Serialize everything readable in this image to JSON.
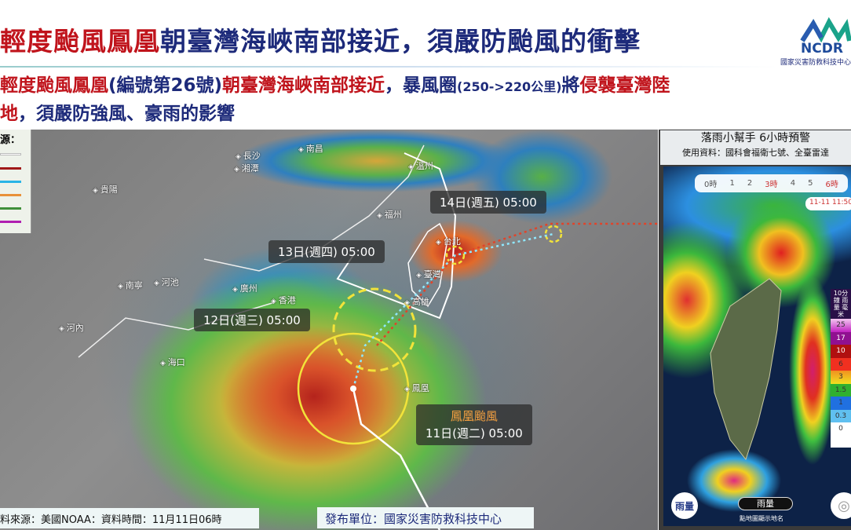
{
  "header": {
    "title_red": "輕度颱風鳳凰",
    "title_blue": "朝臺灣海峽南部接近，須嚴防颱風的衝擊",
    "sub_1": "輕度颱風鳳凰",
    "sub_2": "(編號第26號)",
    "sub_3": "朝臺灣海峽南部接近",
    "sub_4": "，暴風圈",
    "sub_5": "(250->220公里)",
    "sub_6": "將",
    "sub_7": "侵襲臺灣陸",
    "sub_8": "地",
    "sub_9": "，須嚴防強風、豪雨的影響"
  },
  "logo": {
    "text": "NCDR",
    "org": "國家災害防救科技中心"
  },
  "legend": {
    "title": "源：",
    "colors": [
      "#ffffff",
      "#a01818",
      "#2ab4e6",
      "#e8913a",
      "#3f8f3a",
      "#b020b0"
    ]
  },
  "map": {
    "cities": [
      "長沙",
      "湘潭",
      "南昌",
      "貴陽",
      "溫州",
      "福州",
      "台北",
      "臺灣",
      "高雄",
      "南寧",
      "河池",
      "廣州",
      "香港",
      "河內",
      "海口",
      "鳳凰"
    ],
    "labels": {
      "d14": "14日(週五) 05:00",
      "d13": "13日(週四) 05:00",
      "d12": "12日(週三) 05:00",
      "storm": "鳳凰颱風",
      "d11": "11日(週二) 05:00"
    },
    "colors": {
      "track": "#ffffff",
      "forecast": "#8fe8ff",
      "alt_forecast": "#e0442a",
      "radius": "#f2e33a"
    }
  },
  "footer": {
    "source": "料來源：美國NOAA：資料時間：11月11日06時",
    "publisher": "發布單位：國家災害防救科技中心"
  },
  "panel": {
    "title": "落雨小幫手 6小時預警",
    "subtitle": "使用資料：國科會福衛七號、全臺雷達",
    "slider": [
      "0時",
      "1",
      "2",
      "3時",
      "4",
      "5",
      "6時"
    ],
    "timestamp": "11-11 11:50",
    "colorbar_title": "10分鐘 雨量 毫米",
    "colorbar": [
      "25",
      "17",
      "10",
      "6",
      "3",
      "1.5",
      "1",
      "0.3",
      "0"
    ],
    "colorbar_colors": [
      "#f4c8f0",
      "#c020c0",
      "#901090",
      "#b01010",
      "#f03020",
      "#f09020",
      "#f0e020",
      "#30b030",
      "#2070e0",
      "#60c0f0",
      "#ffffff"
    ],
    "rain_button": "雨量",
    "rain_pill": "雨量",
    "hint": "點地圖顯示地名"
  }
}
